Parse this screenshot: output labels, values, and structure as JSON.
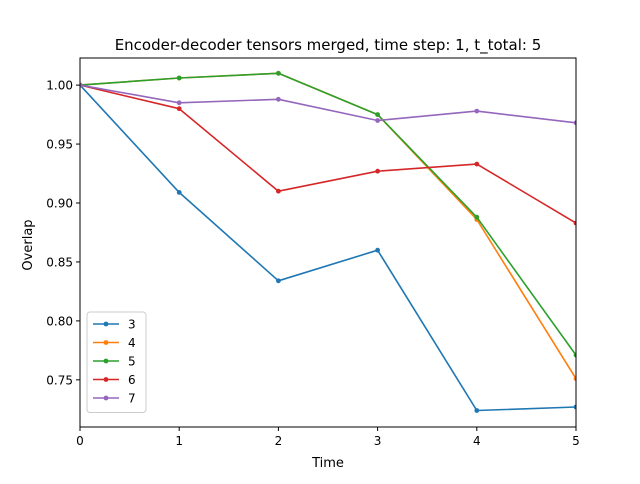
{
  "chart_data": {
    "type": "line",
    "title": "Encoder-decoder tensors merged, time step: 1, t_total: 5",
    "xlabel": "Time",
    "ylabel": "Overlap",
    "xlim": [
      0,
      5
    ],
    "ylim": [
      0.71,
      1.023
    ],
    "xticks": [
      0,
      1,
      2,
      3,
      4,
      5
    ],
    "yticks": [
      0.75,
      0.8,
      0.85,
      0.9,
      0.95,
      1.0
    ],
    "ytick_labels": [
      "0.75",
      "0.80",
      "0.85",
      "0.90",
      "0.95",
      "1.00"
    ],
    "grid": false,
    "legend_position": "lower left",
    "x": [
      0,
      1,
      2,
      3,
      4,
      5
    ],
    "series": [
      {
        "name": "3",
        "color": "#1f77b4",
        "values": [
          1.0,
          0.909,
          0.834,
          0.86,
          0.724,
          0.727
        ]
      },
      {
        "name": "4",
        "color": "#ff7f0e",
        "values": [
          1.0,
          1.006,
          1.01,
          0.975,
          0.886,
          0.751
        ]
      },
      {
        "name": "5",
        "color": "#2ca02c",
        "values": [
          1.0,
          1.006,
          1.01,
          0.975,
          0.888,
          0.771
        ]
      },
      {
        "name": "6",
        "color": "#d62728",
        "values": [
          1.0,
          0.98,
          0.91,
          0.927,
          0.933,
          0.883
        ]
      },
      {
        "name": "7",
        "color": "#9467bd",
        "values": [
          1.0,
          0.985,
          0.988,
          0.97,
          0.978,
          0.968
        ]
      }
    ]
  }
}
